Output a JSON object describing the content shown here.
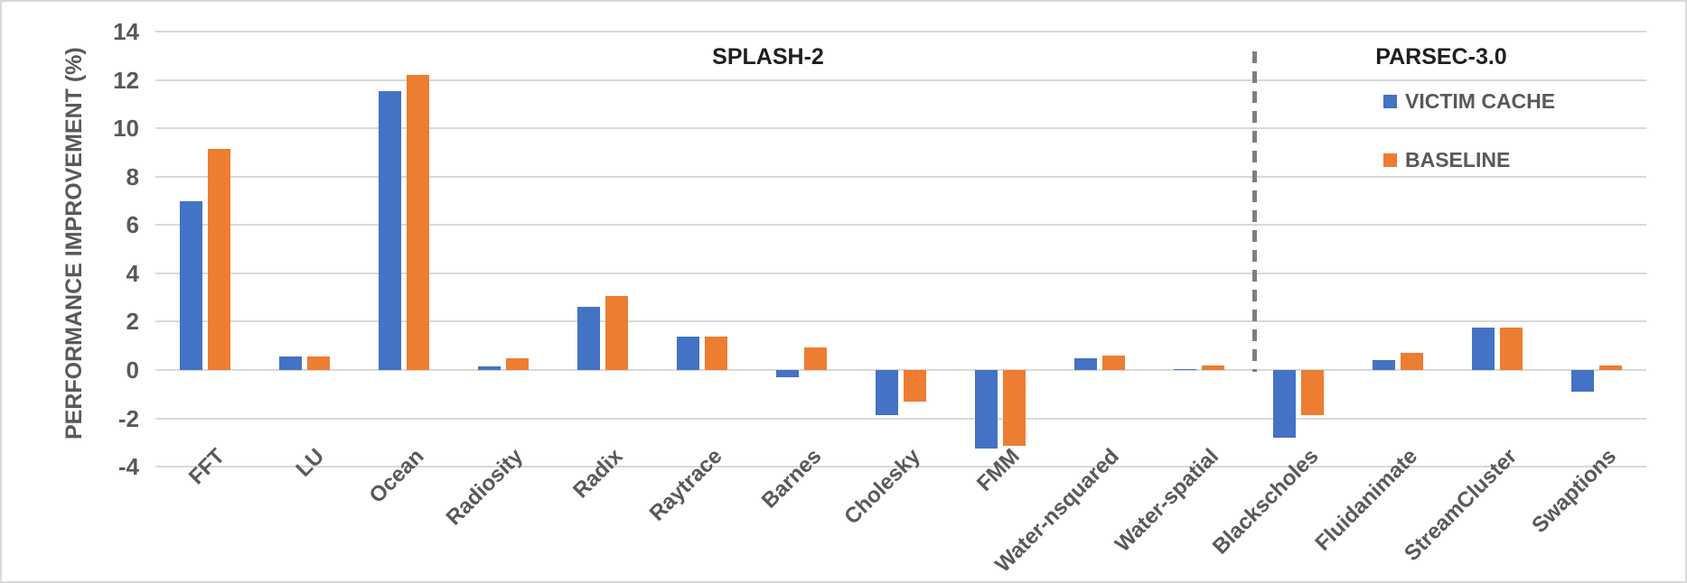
{
  "chart_data": {
    "type": "bar",
    "title": "",
    "ylabel": "PERFORMANCE IMPROVEMENT (%)",
    "xlabel": "",
    "ylim": [
      -4,
      14
    ],
    "yticks": [
      14,
      12,
      10,
      8,
      6,
      4,
      2,
      0,
      -2,
      -4
    ],
    "grid": true,
    "legend_position": "top-right",
    "section_labels": {
      "left": "SPLASH-2",
      "right": "PARSEC-3.0"
    },
    "divider_between": [
      "Water-spatial",
      "Blackscholes"
    ],
    "categories": [
      "FFT",
      "LU",
      "Ocean",
      "Radiosity",
      "Radix",
      "Raytrace",
      "Barnes",
      "Cholesky",
      "FMM",
      "Water-nsquared",
      "Water-spatial",
      "Blackscholes",
      "Fluidanimate",
      "StreamCluster",
      "Swaptions"
    ],
    "series": [
      {
        "name": "VICTIM CACHE",
        "color": "#4472C4",
        "values": [
          7.0,
          0.55,
          11.55,
          0.15,
          2.6,
          1.4,
          -0.3,
          -1.85,
          -3.25,
          0.5,
          0.05,
          -2.8,
          0.4,
          1.75,
          -0.9
        ]
      },
      {
        "name": "BASELINE",
        "color": "#ED7D31",
        "values": [
          9.15,
          0.55,
          12.2,
          0.5,
          3.05,
          1.4,
          0.95,
          -1.3,
          -3.15,
          0.6,
          0.2,
          -1.85,
          0.7,
          1.75,
          0.2
        ]
      }
    ]
  },
  "colors": {
    "grid": "#D9D9D9",
    "axis_text": "#595959",
    "section_text": "#1F1F1F",
    "divider": "#7F7F7F",
    "border": "#D9D9D9"
  }
}
